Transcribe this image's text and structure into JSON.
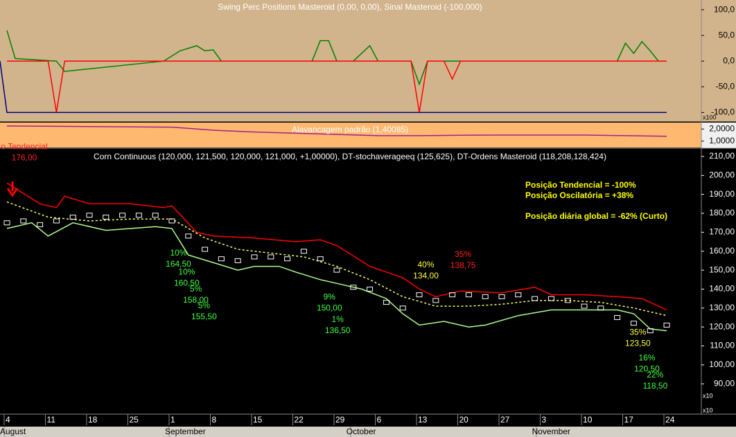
{
  "chart_data": [
    {
      "type": "line",
      "title": "Swing Perc Positions Masteroid (0,00, 0,00), Sinal Masteroid (-100,000)",
      "xlim": [
        -0.84,
        84.2
      ],
      "ylim": [
        -117,
        119
      ],
      "yticks": [
        {
          "value": 100,
          "label": "100,0"
        },
        {
          "value": 50,
          "label": "50,0"
        },
        {
          "value": 0,
          "label": "0,0"
        },
        {
          "value": -50,
          "label": "-50,0"
        },
        {
          "value": -100,
          "label": "-100,0"
        }
      ],
      "series": [
        {
          "color": "#008000",
          "x": [
            0,
            1,
            6,
            7,
            19,
            21,
            23,
            24,
            25,
            26,
            37,
            38,
            39,
            40,
            42,
            44,
            45,
            49,
            50,
            51,
            52,
            53,
            54,
            55,
            74,
            75,
            76,
            77,
            78,
            79,
            80
          ],
          "values": [
            60,
            5,
            0,
            -20,
            0,
            20,
            30,
            20,
            22,
            0,
            0,
            40,
            40,
            0,
            0,
            30,
            0,
            0,
            -45,
            0,
            0,
            0,
            0,
            0,
            0,
            35,
            15,
            38,
            20,
            0,
            0
          ]
        },
        {
          "color": "#ff0000",
          "x": [
            0,
            5,
            6,
            7,
            49,
            50,
            51,
            53,
            54,
            55,
            80
          ],
          "values": [
            0,
            0,
            -100,
            0,
            0,
            -100,
            0,
            0,
            -35,
            0,
            0
          ]
        },
        {
          "color": "#000080",
          "x": [
            -0.84,
            0,
            80
          ],
          "values": [
            0,
            -100,
            -100
          ]
        }
      ]
    },
    {
      "type": "line",
      "title": "Alavancagem padrão (1,40085)",
      "xlim": [
        -0.84,
        84.2
      ],
      "ylim": [
        0.47,
        2.53
      ],
      "yticks": [
        {
          "value": 2,
          "label": "2,0000"
        },
        {
          "value": 1,
          "label": "1,0000"
        }
      ],
      "series": [
        {
          "color": "#a0208a",
          "x": [
            0,
            10,
            20,
            25,
            30,
            35,
            40,
            45,
            50,
            55,
            60,
            65,
            70,
            75,
            80
          ],
          "values": [
            2.25,
            2.2,
            2.15,
            1.9,
            1.75,
            1.65,
            1.55,
            1.45,
            1.45,
            1.48,
            1.5,
            1.5,
            1.5,
            1.45,
            1.4
          ]
        }
      ]
    },
    {
      "type": "line",
      "title": "Corn Continuous (120,000, 121,500, 120,000, 121,000, +1,00000), DT-stochaverageeq (125,625), DT-Ordens Masteroid (118,208,128,424)",
      "xlim": [
        -0.84,
        84.2
      ],
      "ylim": [
        74,
        214
      ],
      "yticks": [
        {
          "value": 90,
          "label": "90,00"
        },
        {
          "value": 100,
          "label": "100,00"
        },
        {
          "value": 110,
          "label": "110,00"
        },
        {
          "value": 120,
          "label": "120,00"
        },
        {
          "value": 130,
          "label": "130,00"
        },
        {
          "value": 140,
          "label": "140,00"
        },
        {
          "value": 150,
          "label": "150,00"
        },
        {
          "value": 160,
          "label": "160,00"
        },
        {
          "value": 170,
          "label": "170,00"
        },
        {
          "value": 180,
          "label": "180,00"
        },
        {
          "value": 190,
          "label": "190,00"
        },
        {
          "value": 200,
          "label": "200,00"
        },
        {
          "value": 210,
          "label": "210,00"
        }
      ],
      "xticks": [
        {
          "value": 0,
          "label": "4"
        },
        {
          "value": 5,
          "label": "11"
        },
        {
          "value": 10,
          "label": "18"
        },
        {
          "value": 15,
          "label": "25"
        },
        {
          "value": 20,
          "label": "1"
        },
        {
          "value": 25,
          "label": "8"
        },
        {
          "value": 30,
          "label": "15"
        },
        {
          "value": 35,
          "label": "22"
        },
        {
          "value": 40,
          "label": "29"
        },
        {
          "value": 45,
          "label": "6"
        },
        {
          "value": 50,
          "label": "13"
        },
        {
          "value": 55,
          "label": "20"
        },
        {
          "value": 60,
          "label": "27"
        },
        {
          "value": 65,
          "label": "3"
        },
        {
          "value": 70,
          "label": "10"
        },
        {
          "value": 75,
          "label": "17"
        },
        {
          "value": 80,
          "label": "24"
        }
      ],
      "month_labels": [
        {
          "value": 0,
          "label": "August"
        },
        {
          "value": 20,
          "label": "September"
        },
        {
          "value": 42,
          "label": "October"
        },
        {
          "value": 64.5,
          "label": "November"
        }
      ],
      "series": [
        {
          "color": "#ff0000",
          "x": [
            0,
            4,
            6,
            7,
            10,
            15,
            19,
            20,
            23,
            25,
            30,
            35,
            38,
            40,
            44,
            48,
            50,
            52,
            55,
            60,
            64,
            66,
            70,
            74,
            77,
            80
          ],
          "values": [
            196,
            185,
            183,
            189,
            185,
            185,
            183,
            184,
            170,
            168,
            167,
            165,
            166,
            163,
            152,
            146,
            140,
            136,
            139,
            138,
            141,
            137,
            137,
            136,
            135,
            129
          ]
        },
        {
          "color": "#b0ff90",
          "x": [
            0,
            3,
            5,
            8,
            12,
            18,
            20,
            22,
            25,
            28,
            30,
            33,
            35,
            38,
            40,
            43,
            46,
            48,
            50,
            53,
            56,
            58,
            62,
            66,
            70,
            74,
            76,
            78,
            80
          ],
          "values": [
            172,
            175,
            168,
            175,
            171,
            173,
            172,
            158,
            154,
            150,
            152,
            152,
            149,
            145,
            143,
            140,
            135,
            127,
            121,
            123,
            120,
            121,
            126,
            129,
            129,
            129,
            127,
            119,
            118
          ]
        },
        {
          "color": "#ffff60",
          "dash": true,
          "x": [
            0,
            5,
            10,
            15,
            20,
            24,
            28,
            32,
            36,
            40,
            44,
            48,
            52,
            56,
            60,
            64,
            68,
            72,
            76,
            80
          ],
          "values": [
            186,
            178,
            176,
            177,
            177,
            167,
            161,
            159,
            157,
            152,
            145,
            136,
            131,
            131,
            132,
            134,
            134,
            133,
            130,
            126
          ]
        },
        {
          "color": "#ffffff",
          "markers": true,
          "x": [
            0,
            2,
            4,
            6,
            8,
            10,
            12,
            14,
            16,
            18,
            20,
            22,
            24,
            26,
            28,
            30,
            32,
            34,
            36,
            38,
            40,
            42,
            44,
            46,
            48,
            50,
            52,
            54,
            56,
            58,
            60,
            62,
            64,
            66,
            68,
            70,
            72,
            74,
            76,
            78,
            80
          ],
          "values": [
            175,
            176,
            174,
            176,
            178,
            179,
            178,
            179,
            179,
            179,
            176,
            168,
            161,
            156,
            155,
            157,
            157,
            156,
            160,
            156,
            150,
            141,
            140,
            133,
            130,
            137,
            134,
            137,
            137,
            136,
            136,
            137,
            135,
            135,
            134,
            131,
            130,
            125,
            122,
            118,
            121
          ]
        }
      ],
      "annotations": [
        {
          "lines": [
            "o Tendencial",
            "176,00"
          ],
          "color": "#ff2020",
          "x": 2.1,
          "y": 215
        },
        {
          "lines": [
            "10%",
            "164,50"
          ],
          "color": "#40ff40",
          "x": 20.8,
          "y": 158.9
        },
        {
          "lines": [
            "10%",
            "160,50"
          ],
          "color": "#40ff40",
          "x": 21.8,
          "y": 148.8
        },
        {
          "lines": [
            "5%",
            "158,00"
          ],
          "color": "#40ff40",
          "x": 22.9,
          "y": 139.9
        },
        {
          "lines": [
            "5%",
            "155,50"
          ],
          "color": "#40ff40",
          "x": 23.9,
          "y": 131
        },
        {
          "lines": [
            "9%",
            "150,00"
          ],
          "color": "#40ff40",
          "x": 39.1,
          "y": 135.7
        },
        {
          "lines": [
            "1%",
            "136,50"
          ],
          "color": "#40ff40",
          "x": 40.1,
          "y": 123.7
        },
        {
          "lines": [
            "40%",
            "134,00"
          ],
          "color": "#ffff40",
          "x": 50.8,
          "y": 152.7
        },
        {
          "lines": [
            "35%",
            "138,75"
          ],
          "color": "#ff2020",
          "x": 55.3,
          "y": 158.1
        },
        {
          "lines": [
            "35%",
            "123,50"
          ],
          "color": "#ffff40",
          "x": 76.5,
          "y": 117.1
        },
        {
          "lines": [
            "16%",
            "120,50"
          ],
          "color": "#40ff40",
          "x": 77.6,
          "y": 103.5
        },
        {
          "lines": [
            "22%",
            "118,50"
          ],
          "color": "#40ff40",
          "x": 78.6,
          "y": 94.6
        }
      ],
      "info": [
        "Posição Tendencial = -100%",
        "Posição Oscilatória = +38%",
        "Posição diária global = -62% (Curto)"
      ]
    }
  ],
  "unit_labels": [
    "x100",
    "x10",
    "x10"
  ]
}
